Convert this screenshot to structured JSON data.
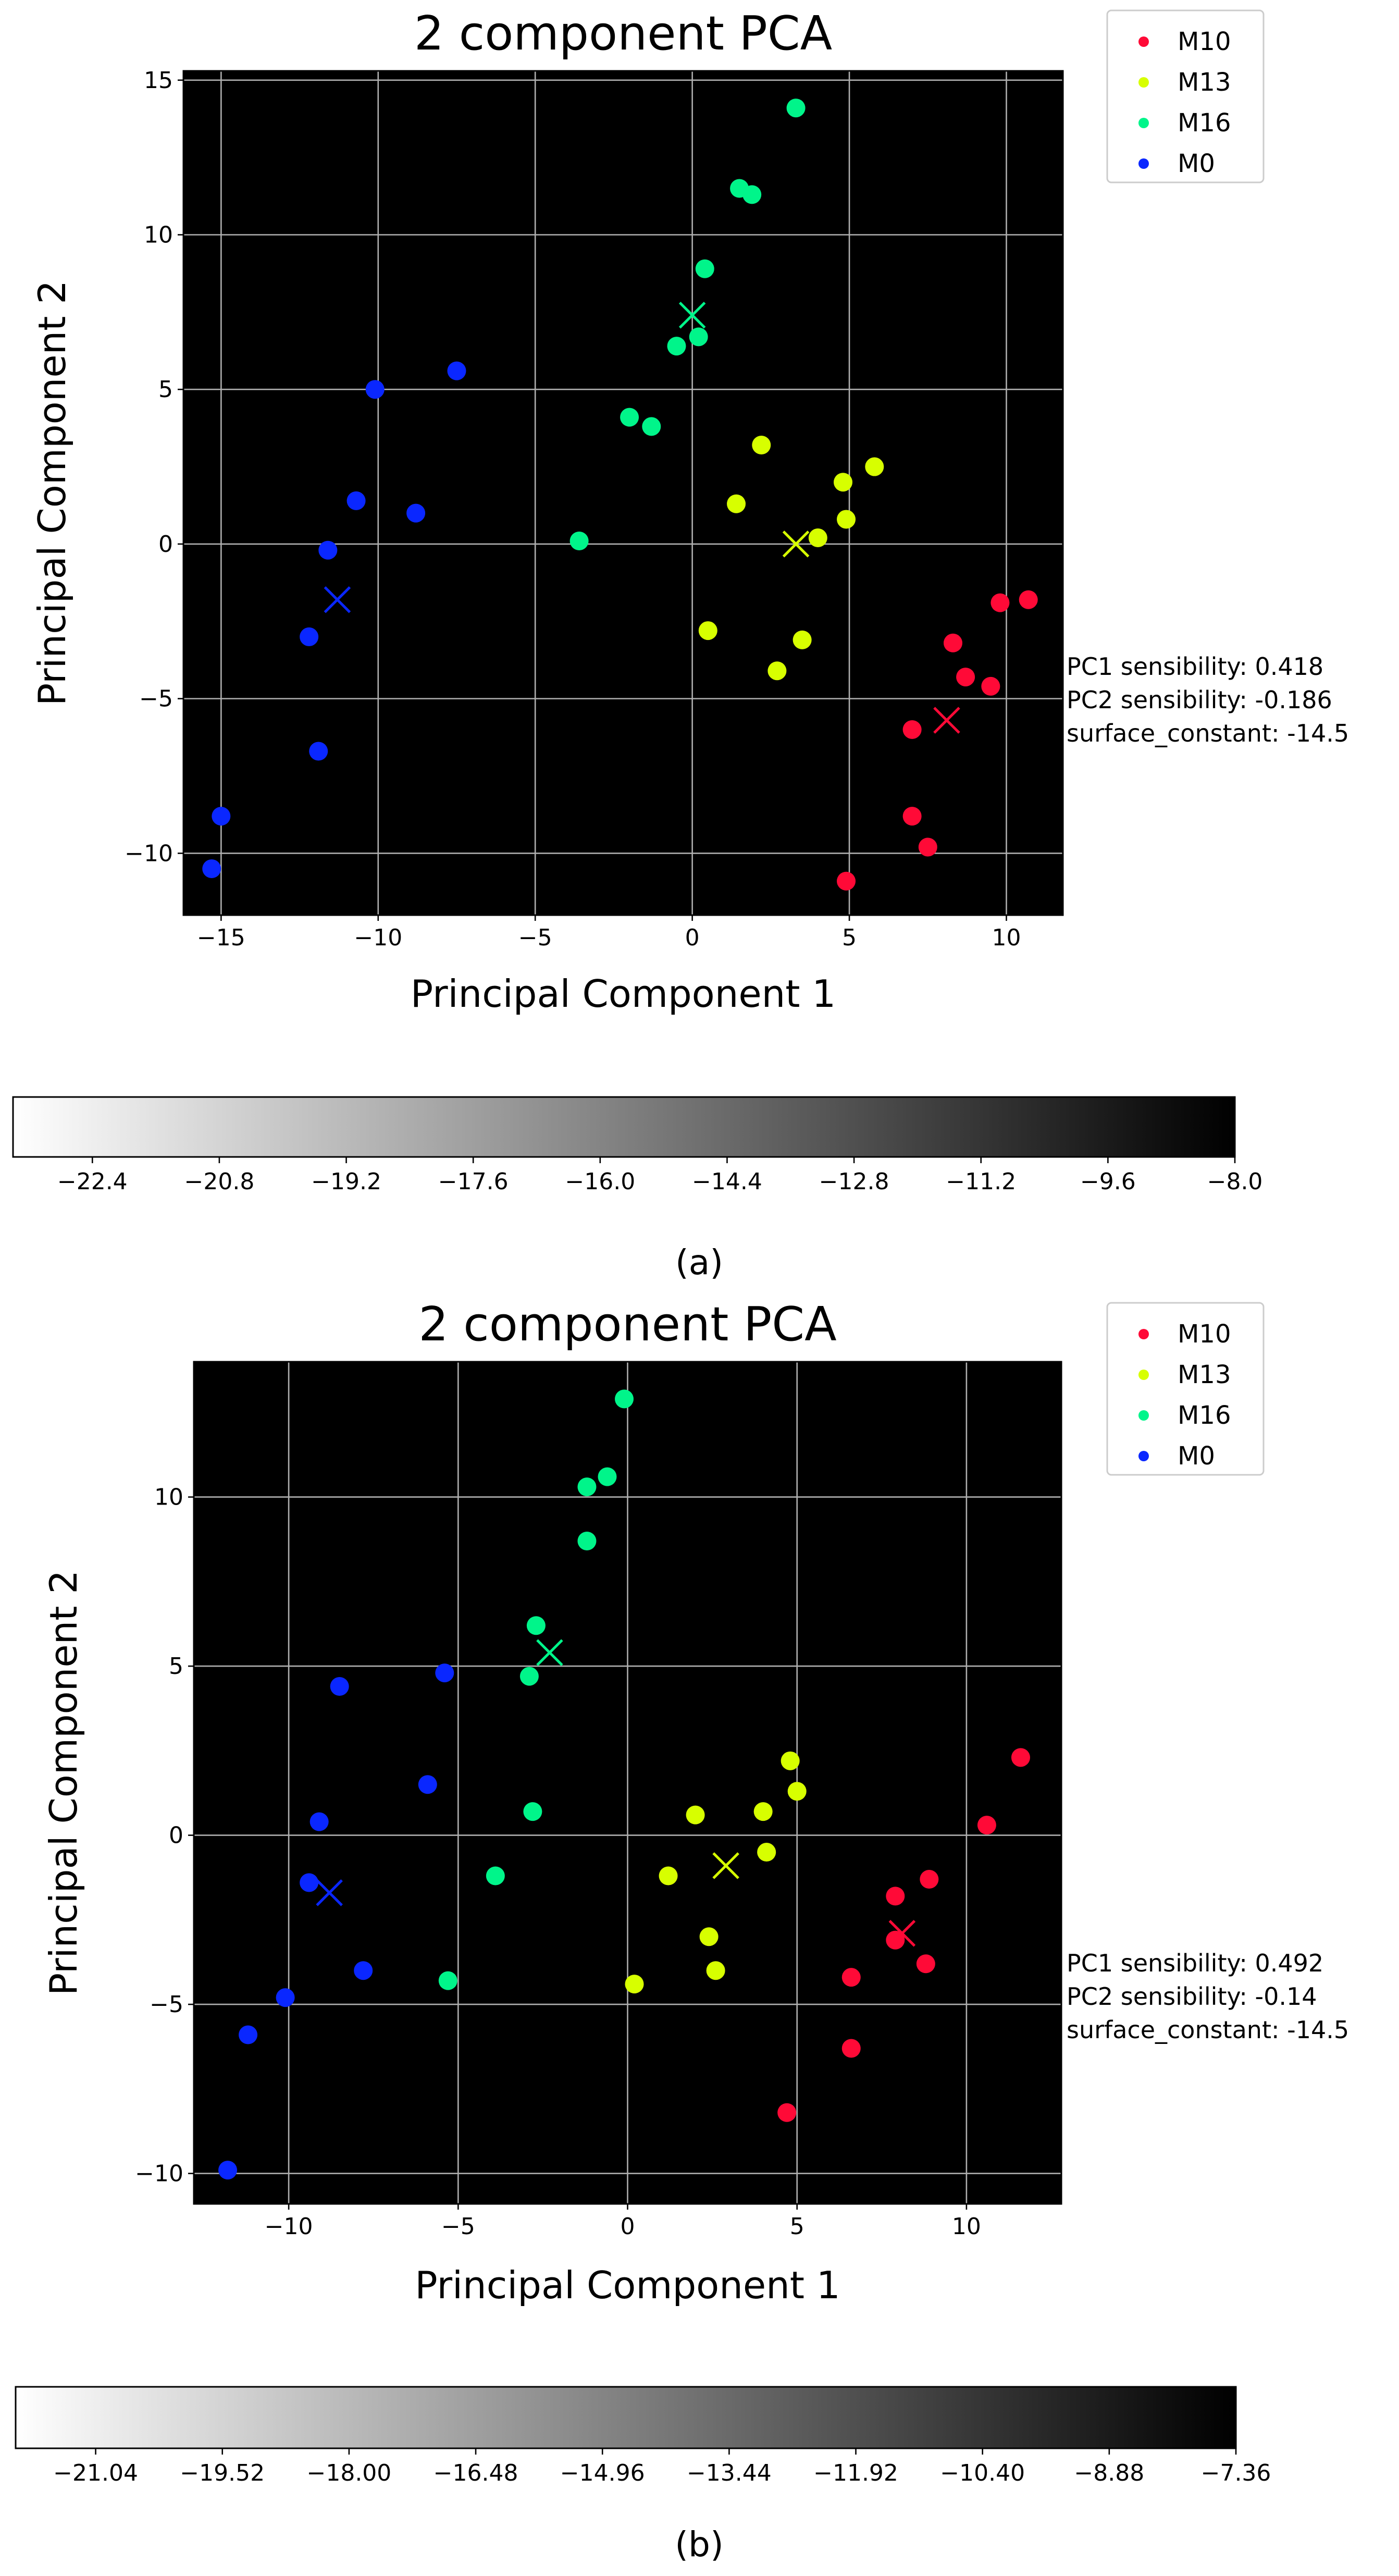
{
  "panels": [
    {
      "caption": "(a)",
      "chart_data": {
        "type": "scatter",
        "title": "2 component PCA",
        "xlabel": "Principal Component 1",
        "ylabel": "Principal Component 2",
        "xlim": [
          -16.2,
          11.8
        ],
        "ylim": [
          -12.0,
          15.3
        ],
        "x_ticks": [
          -15,
          -10,
          -5,
          0,
          5,
          10
        ],
        "y_ticks": [
          -10,
          -5,
          0,
          5,
          10,
          15
        ],
        "grid": true,
        "legend_placement": "outside upper right",
        "background": {
          "type": "heatmap",
          "description_of_surface": "linear gradient",
          "pc1_coefficient": 0.418,
          "pc2_coefficient": -0.186,
          "constant": -14.5,
          "colormap": "white-to-black"
        },
        "annotation": [
          "PC1 sensibility: 0.418",
          "PC2 sensibility: -0.186",
          "surface_constant: -14.5"
        ],
        "colorbar": {
          "min": -23.4,
          "max": -8.0,
          "ticks": [
            "−22.4",
            "−20.8",
            "−19.2",
            "−17.6",
            "−16.0",
            "−14.4",
            "−12.8",
            "−11.2",
            "−9.6",
            "−8.0"
          ],
          "tick_values": [
            -22.4,
            -20.8,
            -19.2,
            -17.6,
            -16.0,
            -14.4,
            -12.8,
            -11.2,
            -9.6,
            -8.0
          ]
        },
        "series": [
          {
            "name": "M10",
            "color": "#ff0a37",
            "points": [
              [
                10.7,
                -1.8
              ],
              [
                9.8,
                -1.9
              ],
              [
                8.3,
                -3.2
              ],
              [
                8.7,
                -4.3
              ],
              [
                9.5,
                -4.6
              ],
              [
                7.0,
                -6.0
              ],
              [
                7.0,
                -8.8
              ],
              [
                7.5,
                -9.8
              ],
              [
                4.9,
                -10.9
              ]
            ],
            "centroid": [
              8.1,
              -5.7
            ]
          },
          {
            "name": "M13",
            "color": "#d7ff00",
            "points": [
              [
                2.2,
                3.2
              ],
              [
                5.8,
                2.5
              ],
              [
                4.8,
                2.0
              ],
              [
                1.4,
                1.3
              ],
              [
                4.9,
                0.8
              ],
              [
                4.0,
                0.2
              ],
              [
                0.5,
                -2.8
              ],
              [
                3.5,
                -3.1
              ],
              [
                2.7,
                -4.1
              ]
            ],
            "centroid": [
              3.3,
              0.0
            ]
          },
          {
            "name": "M16",
            "color": "#00f58a",
            "points": [
              [
                3.3,
                14.1
              ],
              [
                1.5,
                11.5
              ],
              [
                1.9,
                11.3
              ],
              [
                0.4,
                8.9
              ],
              [
                0.2,
                6.7
              ],
              [
                -0.5,
                6.4
              ],
              [
                -2.0,
                4.1
              ],
              [
                -1.3,
                3.8
              ],
              [
                -3.6,
                0.1
              ]
            ],
            "centroid": [
              0.0,
              7.4
            ]
          },
          {
            "name": "M0",
            "color": "#0a27ff",
            "points": [
              [
                -7.5,
                5.6
              ],
              [
                -10.1,
                5.0
              ],
              [
                -10.7,
                1.4
              ],
              [
                -8.8,
                1.0
              ],
              [
                -11.6,
                -0.2
              ],
              [
                -12.2,
                -3.0
              ],
              [
                -11.9,
                -6.7
              ],
              [
                -15.0,
                -8.8
              ],
              [
                -15.3,
                -10.5
              ]
            ],
            "centroid": [
              -11.3,
              -1.8
            ]
          }
        ]
      }
    },
    {
      "caption": "(b)",
      "chart_data": {
        "type": "scatter",
        "title": "2 component PCA",
        "xlabel": "Principal Component 1",
        "ylabel": "Principal Component 2",
        "xlim": [
          -12.8,
          12.8
        ],
        "ylim": [
          -10.9,
          14.0
        ],
        "x_ticks": [
          -10,
          -5,
          0,
          5,
          10
        ],
        "y_ticks": [
          -10,
          -5,
          0,
          5,
          10
        ],
        "grid": true,
        "legend_placement": "outside upper right",
        "background": {
          "type": "heatmap",
          "description_of_surface": "linear gradient",
          "pc1_coefficient": 0.492,
          "pc2_coefficient": -0.14,
          "constant": -14.5,
          "colormap": "white-to-black"
        },
        "annotation": [
          "PC1 sensibility: 0.492",
          "PC2 sensibility: -0.14",
          "surface_constant: -14.5"
        ],
        "colorbar": {
          "min": -22.0,
          "max": -7.36,
          "ticks": [
            "−21.04",
            "−19.52",
            "−18.00",
            "−16.48",
            "−14.96",
            "−13.44",
            "−11.92",
            "−10.40",
            "−8.88",
            "−7.36"
          ],
          "tick_values": [
            -21.04,
            -19.52,
            -18.0,
            -16.48,
            -14.96,
            -13.44,
            -11.92,
            -10.4,
            -8.88,
            -7.36
          ]
        },
        "series": [
          {
            "name": "M10",
            "color": "#ff0a37",
            "points": [
              [
                11.6,
                2.3
              ],
              [
                10.6,
                0.3
              ],
              [
                8.9,
                -1.3
              ],
              [
                7.9,
                -1.8
              ],
              [
                7.9,
                -3.1
              ],
              [
                8.8,
                -3.8
              ],
              [
                6.6,
                -4.2
              ],
              [
                6.6,
                -6.3
              ],
              [
                4.7,
                -8.2
              ]
            ],
            "centroid": [
              8.1,
              -2.9
            ]
          },
          {
            "name": "M13",
            "color": "#d7ff00",
            "points": [
              [
                4.8,
                2.2
              ],
              [
                5.0,
                1.3
              ],
              [
                2.0,
                0.6
              ],
              [
                4.0,
                0.7
              ],
              [
                4.1,
                -0.5
              ],
              [
                1.2,
                -1.2
              ],
              [
                2.4,
                -3.0
              ],
              [
                2.6,
                -4.0
              ],
              [
                0.2,
                -4.4
              ]
            ],
            "centroid": [
              2.9,
              -0.9
            ]
          },
          {
            "name": "M16",
            "color": "#00f58a",
            "points": [
              [
                -0.1,
                12.9
              ],
              [
                -0.6,
                10.6
              ],
              [
                -1.2,
                10.3
              ],
              [
                -1.2,
                8.7
              ],
              [
                -2.7,
                6.2
              ],
              [
                -2.9,
                4.7
              ],
              [
                -2.8,
                0.7
              ],
              [
                -3.9,
                -1.2
              ],
              [
                -5.3,
                -4.3
              ]
            ],
            "centroid": [
              -2.3,
              5.4
            ]
          },
          {
            "name": "M0",
            "color": "#0a27ff",
            "points": [
              [
                -8.5,
                4.4
              ],
              [
                -5.4,
                4.8
              ],
              [
                -5.9,
                1.5
              ],
              [
                -9.1,
                0.4
              ],
              [
                -9.4,
                -1.4
              ],
              [
                -7.8,
                -4.0
              ],
              [
                -10.1,
                -4.8
              ],
              [
                -11.2,
                -5.9
              ],
              [
                -11.8,
                -9.9
              ]
            ],
            "centroid": [
              -8.8,
              -1.7
            ]
          }
        ]
      }
    }
  ]
}
